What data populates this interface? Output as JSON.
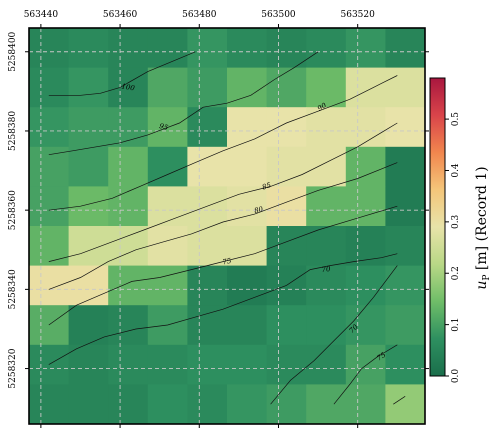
{
  "chart_data": {
    "type": "heatmap",
    "title": "",
    "xlabel": "",
    "ylabel": "",
    "x_ticks": [
      563440,
      563460,
      563480,
      563500,
      563520
    ],
    "y_ticks": [
      5258320,
      5258340,
      5258360,
      5258380,
      5258400
    ],
    "xlim": [
      563437,
      563537
    ],
    "ylim": [
      5258306,
      5258406
    ],
    "grid": true,
    "cell_size": 10,
    "x_edges": [
      563437,
      563447,
      563457,
      563467,
      563477,
      563487,
      563497,
      563507,
      563517,
      563527,
      563537
    ],
    "y_edges": [
      5258406,
      5258396,
      5258386,
      5258376,
      5258366,
      5258356,
      5258346,
      5258336,
      5258326,
      5258316,
      5258306
    ],
    "cells": [
      [
        0.05,
        0.06,
        0.05,
        0.05,
        0.08,
        0.06,
        0.05,
        0.06,
        0.08,
        0.05
      ],
      [
        0.06,
        0.08,
        0.05,
        0.11,
        0.09,
        0.13,
        0.11,
        0.14,
        0.27,
        0.27
      ],
      [
        0.08,
        0.09,
        0.09,
        0.13,
        0.06,
        0.29,
        0.29,
        0.28,
        0.28,
        0.29
      ],
      [
        0.1,
        0.09,
        0.13,
        0.07,
        0.29,
        0.29,
        0.28,
        0.28,
        0.13,
        0.03
      ],
      [
        0.1,
        0.14,
        0.13,
        0.27,
        0.27,
        0.28,
        0.3,
        0.13,
        0.13,
        0.03
      ],
      [
        0.13,
        0.25,
        0.25,
        0.28,
        0.27,
        0.27,
        0.05,
        0.05,
        0.04,
        0.05
      ],
      [
        0.3,
        0.3,
        0.13,
        0.13,
        0.05,
        0.03,
        0.04,
        0.06,
        0.07,
        0.08
      ],
      [
        0.12,
        0.04,
        0.05,
        0.09,
        0.05,
        0.05,
        0.07,
        0.07,
        0.08,
        0.09
      ],
      [
        0.06,
        0.05,
        0.06,
        0.06,
        0.07,
        0.07,
        0.06,
        0.06,
        0.1,
        0.07
      ],
      [
        0.05,
        0.05,
        0.05,
        0.07,
        0.06,
        0.08,
        0.09,
        0.11,
        0.11,
        0.18
      ]
    ],
    "colorbar": {
      "label": "u_P [m] (Record 1)",
      "label_main": "u",
      "label_sub": "P",
      "label_rest": " [m]  (Record 1)",
      "min": 0.0,
      "max": 0.58,
      "ticks": [
        0.0,
        0.1,
        0.2,
        0.3,
        0.4,
        0.5
      ],
      "tick_labels": [
        "0.0",
        "0.1",
        "0.2",
        "0.3",
        "0.4",
        "0.5"
      ],
      "colormap": [
        "#1a6e4b",
        "#2e9060",
        "#6fbd68",
        "#b9d886",
        "#e8e3a9",
        "#f4c67a",
        "#f1864e",
        "#d9444a",
        "#a9173f"
      ]
    },
    "contours": [
      {
        "label": "100",
        "x": [
          563442,
          563450,
          563455,
          563460,
          563467,
          563473,
          563479
        ],
        "y": [
          5258389,
          5258389,
          5258389.5,
          5258391,
          5258395,
          5258397.5,
          5258400
        ]
      },
      {
        "label": "95",
        "x": [
          563442,
          563448,
          563454,
          563460,
          563467,
          563475,
          563481,
          563487,
          563493,
          563499,
          563504,
          563510
        ],
        "y": [
          5258374,
          5258375,
          5258376,
          5258377,
          5258379,
          5258382,
          5258386,
          5258387,
          5258389,
          5258393,
          5258396,
          5258400
        ]
      },
      {
        "label": "90",
        "x": [
          563442,
          563450,
          563458,
          563465,
          563472,
          563479,
          563486,
          563494,
          563502,
          563510,
          563518,
          563524,
          563530
        ],
        "y": [
          5258360,
          5258361,
          5258363,
          5258366,
          5258369,
          5258372,
          5258375,
          5258378,
          5258382,
          5258385,
          5258388,
          5258391,
          5258394
        ]
      },
      {
        "label": "85",
        "x": [
          563442,
          563450,
          563458,
          563466,
          563474,
          563482,
          563490,
          563498,
          563506,
          563514,
          563520,
          563530
        ],
        "y": [
          5258347,
          5258349,
          5258352,
          5258355,
          5258358,
          5258361,
          5258364,
          5258366,
          5258369,
          5258373,
          5258376,
          5258382
        ]
      },
      {
        "label": "80",
        "x": [
          563442,
          563450,
          563457,
          563464,
          563471,
          563478,
          563486,
          563494,
          563502,
          563510,
          563520,
          563530
        ],
        "y": [
          5258340,
          5258343,
          5258347,
          5258350,
          5258352,
          5258354,
          5258357,
          5258359,
          5258362,
          5258365,
          5258368,
          5258372
        ]
      },
      {
        "label": "75",
        "x": [
          563442,
          563449,
          563456,
          563463,
          563470,
          563478,
          563486,
          563494,
          563502,
          563510,
          563520,
          563530
        ],
        "y": [
          5258331,
          5258336,
          5258339,
          5258342,
          5258343,
          5258345,
          5258347,
          5258349,
          5258352,
          5258355,
          5258358,
          5258361
        ]
      },
      {
        "label": "70",
        "x": [
          563442,
          563449,
          563456,
          563464,
          563472,
          563479,
          563486,
          563494,
          563502,
          563508,
          563513,
          563519,
          563526,
          563530
        ],
        "y": [
          5258321,
          5258325,
          5258328,
          5258330,
          5258331,
          5258333,
          5258335,
          5258338,
          5258341,
          5258345,
          5258346,
          5258347,
          5258348,
          5258349
        ]
      },
      {
        "label": "70",
        "x": [
          563498,
          563503,
          563509,
          563514,
          563519,
          563524,
          563530
        ],
        "y": [
          5258311,
          5258317,
          5258322,
          5258327,
          5258332,
          5258338,
          5258346
        ]
      },
      {
        "label": "75",
        "x": [
          563514,
          563518,
          563521,
          563525,
          563530
        ],
        "y": [
          5258311,
          5258316,
          5258320,
          5258323,
          5258326
        ]
      },
      {
        "label": "",
        "x": [
          563529,
          563532
        ],
        "y": [
          5258311,
          5258313
        ]
      }
    ],
    "contour_labels": [
      {
        "text": "100",
        "x": 563462,
        "y": 5258391,
        "angle": 10
      },
      {
        "text": "95",
        "x": 563471,
        "y": 5258381,
        "angle": 16
      },
      {
        "text": "90",
        "x": 563511,
        "y": 5258386,
        "angle": -30
      },
      {
        "text": "85",
        "x": 563497,
        "y": 5258366,
        "angle": -18
      },
      {
        "text": "80",
        "x": 563495,
        "y": 5258360,
        "angle": -14
      },
      {
        "text": "75",
        "x": 563487,
        "y": 5258347,
        "angle": -12
      },
      {
        "text": "70",
        "x": 563512,
        "y": 5258345,
        "angle": -6
      },
      {
        "text": "70",
        "x": 563519,
        "y": 5258330,
        "angle": -45
      },
      {
        "text": "75",
        "x": 563526,
        "y": 5258323,
        "angle": -35
      }
    ]
  }
}
